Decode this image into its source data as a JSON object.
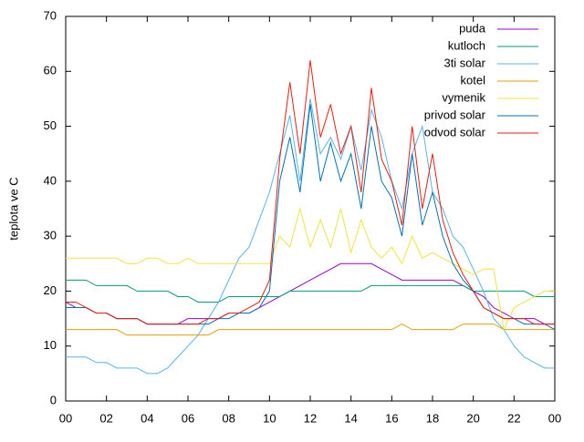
{
  "chart_data": {
    "type": "line",
    "ylabel": "teplota ve C",
    "xlim": [
      0,
      24
    ],
    "ylim": [
      0,
      70
    ],
    "xticks": [
      {
        "value": 0,
        "label": "00"
      },
      {
        "value": 2,
        "label": "02"
      },
      {
        "value": 4,
        "label": "04"
      },
      {
        "value": 6,
        "label": "06"
      },
      {
        "value": 8,
        "label": "08"
      },
      10,
      12,
      14,
      16,
      18,
      20,
      22,
      {
        "value": 24,
        "label": "00"
      }
    ],
    "yticks": [
      0,
      10,
      20,
      30,
      40,
      50,
      60,
      70
    ],
    "grid": false,
    "legend": "top-right",
    "x": [
      0,
      0.5,
      1,
      1.5,
      2,
      2.5,
      3,
      3.5,
      4,
      4.5,
      5,
      5.5,
      6,
      6.5,
      7,
      7.5,
      8,
      8.5,
      9,
      9.5,
      10,
      10.5,
      11,
      11.5,
      12,
      12.5,
      13,
      13.5,
      14,
      14.5,
      15,
      15.5,
      16,
      16.5,
      17,
      17.5,
      18,
      18.5,
      19,
      19.5,
      20,
      20.5,
      21,
      21.5,
      22,
      22.5,
      23,
      23.5,
      24
    ],
    "series": [
      {
        "name": "puda",
        "color": "#9400d3",
        "values": [
          18,
          17,
          17,
          16,
          16,
          15,
          15,
          15,
          14,
          14,
          14,
          14,
          15,
          15,
          15,
          15,
          16,
          16,
          16,
          17,
          18,
          19,
          20,
          21,
          22,
          23,
          24,
          25,
          25,
          25,
          25,
          24,
          23,
          22,
          22,
          22,
          22,
          22,
          22,
          21,
          20,
          19,
          17,
          16,
          15,
          15,
          15,
          14,
          14
        ]
      },
      {
        "name": "kutloch",
        "color": "#009e73",
        "values": [
          22,
          22,
          22,
          21,
          21,
          21,
          21,
          20,
          20,
          20,
          20,
          19,
          19,
          18,
          18,
          18,
          19,
          19,
          19,
          19,
          19,
          19,
          20,
          20,
          20,
          20,
          20,
          20,
          20,
          20,
          21,
          21,
          21,
          21,
          21,
          21,
          21,
          21,
          21,
          21,
          20,
          20,
          20,
          20,
          20,
          20,
          19,
          19,
          19
        ]
      },
      {
        "name": "3ti solar",
        "color": "#56b4e9",
        "values": [
          8,
          8,
          8,
          7,
          7,
          6,
          6,
          6,
          5,
          5,
          6,
          8,
          10,
          12,
          15,
          18,
          22,
          26,
          28,
          33,
          38,
          45,
          52,
          40,
          55,
          45,
          48,
          44,
          50,
          42,
          53,
          48,
          40,
          35,
          45,
          50,
          38,
          35,
          30,
          28,
          24,
          20,
          15,
          13,
          10,
          8,
          7,
          6,
          6
        ]
      },
      {
        "name": "kotel",
        "color": "#e69f00",
        "values": [
          13,
          13,
          13,
          13,
          13,
          13,
          12,
          12,
          12,
          12,
          12,
          12,
          12,
          12,
          12,
          13,
          13,
          13,
          13,
          13,
          13,
          13,
          13,
          13,
          13,
          13,
          13,
          13,
          13,
          13,
          13,
          13,
          13,
          14,
          13,
          13,
          13,
          13,
          13,
          14,
          14,
          14,
          14,
          13,
          13,
          13,
          13,
          13,
          13
        ]
      },
      {
        "name": "vymenik",
        "color": "#f0e442",
        "values": [
          26,
          26,
          26,
          26,
          26,
          26,
          25,
          25,
          26,
          26,
          25,
          25,
          26,
          25,
          25,
          25,
          25,
          25,
          25,
          25,
          25,
          30,
          28,
          35,
          28,
          33,
          28,
          35,
          27,
          33,
          28,
          26,
          28,
          25,
          30,
          26,
          27,
          26,
          25,
          24,
          23,
          24,
          24,
          13,
          17,
          18,
          19,
          20,
          20
        ]
      },
      {
        "name": "privod solar",
        "color": "#0072b2",
        "values": [
          17,
          17,
          17,
          16,
          16,
          15,
          15,
          15,
          14,
          14,
          14,
          14,
          14,
          14,
          14,
          15,
          15,
          16,
          16,
          17,
          20,
          40,
          48,
          38,
          54,
          40,
          47,
          40,
          45,
          35,
          50,
          40,
          37,
          30,
          45,
          32,
          38,
          30,
          25,
          22,
          20,
          17,
          16,
          15,
          15,
          14,
          14,
          14,
          13
        ]
      },
      {
        "name": "odvod solar",
        "color": "#e51e10",
        "values": [
          18,
          18,
          17,
          16,
          16,
          15,
          15,
          15,
          14,
          14,
          14,
          14,
          14,
          14,
          15,
          15,
          16,
          16,
          17,
          18,
          22,
          44,
          58,
          45,
          62,
          48,
          54,
          45,
          50,
          38,
          57,
          44,
          40,
          32,
          50,
          35,
          45,
          33,
          27,
          23,
          20,
          17,
          16,
          15,
          15,
          15,
          14,
          14,
          14
        ]
      }
    ]
  }
}
